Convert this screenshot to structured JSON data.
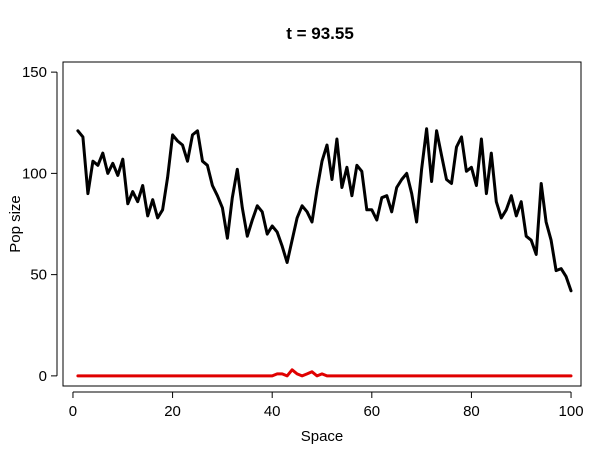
{
  "chart_data": {
    "type": "line",
    "title": "t = 93.55",
    "xlabel": "Space",
    "ylabel": "Pop size",
    "xlim": [
      -2,
      102
    ],
    "ylim": [
      -5,
      155
    ],
    "xticks": [
      0,
      20,
      40,
      60,
      80,
      100
    ],
    "yticks": [
      0,
      50,
      100,
      150
    ],
    "grid": false,
    "x": [
      1,
      2,
      3,
      4,
      5,
      6,
      7,
      8,
      9,
      10,
      11,
      12,
      13,
      14,
      15,
      16,
      17,
      18,
      19,
      20,
      21,
      22,
      23,
      24,
      25,
      26,
      27,
      28,
      29,
      30,
      31,
      32,
      33,
      34,
      35,
      36,
      37,
      38,
      39,
      40,
      41,
      42,
      43,
      44,
      45,
      46,
      47,
      48,
      49,
      50,
      51,
      52,
      53,
      54,
      55,
      56,
      57,
      58,
      59,
      60,
      61,
      62,
      63,
      64,
      65,
      66,
      67,
      68,
      69,
      70,
      71,
      72,
      73,
      74,
      75,
      76,
      77,
      78,
      79,
      80,
      81,
      82,
      83,
      84,
      85,
      86,
      87,
      88,
      89,
      90,
      91,
      92,
      93,
      94,
      95,
      96,
      97,
      98,
      99,
      100
    ],
    "series": [
      {
        "color": "#000000",
        "values": [
          121,
          118,
          90,
          106,
          104,
          110,
          100,
          105,
          99,
          107,
          85,
          91,
          86,
          94,
          79,
          87,
          78,
          82,
          98,
          119,
          116,
          114,
          106,
          119,
          121,
          106,
          104,
          94,
          89,
          83,
          68,
          88,
          102,
          83,
          69,
          77,
          84,
          81,
          70,
          74,
          71,
          64,
          56,
          67,
          78,
          84,
          81,
          76,
          92,
          106,
          114,
          97,
          117,
          93,
          103,
          89,
          104,
          101,
          82,
          82,
          77,
          88,
          89,
          81,
          93,
          97,
          100,
          90,
          76,
          102,
          122,
          96,
          121,
          109,
          97,
          95,
          113,
          118,
          101,
          103,
          94,
          117,
          90,
          110,
          86,
          78,
          82,
          89,
          79,
          86,
          69,
          67,
          60,
          95,
          76,
          67,
          52,
          53,
          49,
          42
        ]
      },
      {
        "color": "#e00000",
        "values": [
          0,
          0,
          0,
          0,
          0,
          0,
          0,
          0,
          0,
          0,
          0,
          0,
          0,
          0,
          0,
          0,
          0,
          0,
          0,
          0,
          0,
          0,
          0,
          0,
          0,
          0,
          0,
          0,
          0,
          0,
          0,
          0,
          0,
          0,
          0,
          0,
          0,
          0,
          0,
          0,
          1,
          1,
          0,
          3,
          1,
          0,
          1,
          2,
          0,
          1,
          0,
          0,
          0,
          0,
          0,
          0,
          0,
          0,
          0,
          0,
          0,
          0,
          0,
          0,
          0,
          0,
          0,
          0,
          0,
          0,
          0,
          0,
          0,
          0,
          0,
          0,
          0,
          0,
          0,
          0,
          0,
          0,
          0,
          0,
          0,
          0,
          0,
          0,
          0,
          0,
          0,
          0,
          0,
          0,
          0,
          0,
          0,
          0,
          0,
          0
        ]
      }
    ]
  }
}
